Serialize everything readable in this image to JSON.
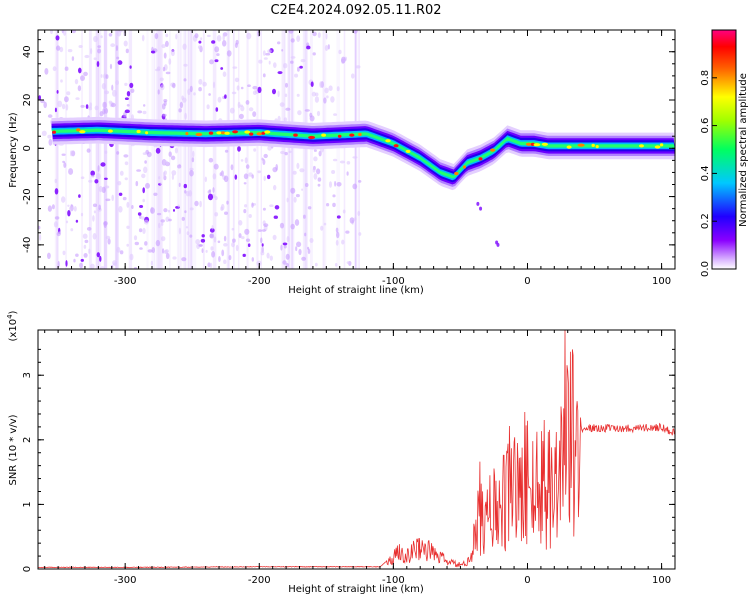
{
  "title": "C2E4.2024.092.05.11.R02",
  "chart_data": [
    {
      "type": "heatmap",
      "xlabel": "Height of straight line (km)",
      "ylabel": "Frequency (Hz)",
      "xlim": [
        -365,
        110
      ],
      "ylim": [
        -50,
        49
      ],
      "xticks": [
        "-300",
        "-200",
        "-100",
        "0",
        "100"
      ],
      "xtick_values": [
        -300,
        -200,
        -100,
        0,
        100
      ],
      "yticks": [
        "-40",
        "-20",
        "0",
        "20",
        "40"
      ],
      "ytick_values": [
        -40,
        -20,
        0,
        20,
        40
      ],
      "colorbar": {
        "label": "Normalized spectral amplitude",
        "range": [
          0,
          1
        ],
        "ticks": [
          "0.0",
          "0.2",
          "0.4",
          "0.6",
          "0.8"
        ],
        "tick_values": [
          0.0,
          0.2,
          0.4,
          0.6,
          0.8
        ]
      },
      "ridge": {
        "x": [
          -355,
          -320,
          -280,
          -240,
          -200,
          -160,
          -120,
          -100,
          -80,
          -65,
          -55,
          -45,
          -35,
          -25,
          -15,
          -5,
          5,
          15,
          25,
          60,
          110
        ],
        "y": [
          7,
          7.5,
          6.5,
          6,
          6.5,
          5,
          6,
          2,
          -4,
          -10,
          -12,
          -6,
          -4,
          -1,
          4,
          2,
          2,
          1,
          1,
          1,
          1
        ]
      },
      "noise_region_x": [
        -365,
        -125
      ]
    },
    {
      "type": "line",
      "xlabel": "Height of straight line (km)",
      "ylabel": "SNR (10 * v/v)",
      "y_multiplier": "(x10",
      "y_multiplier_exp": "4",
      "y_multiplier_close": ")",
      "xlim": [
        -365,
        110
      ],
      "ylim": [
        0,
        3.7
      ],
      "xticks": [
        "-300",
        "-200",
        "-100",
        "0",
        "100"
      ],
      "xtick_values": [
        -300,
        -200,
        -100,
        0,
        100
      ],
      "yticks": [
        "0",
        "1",
        "2",
        "3"
      ],
      "ytick_values": [
        0,
        1,
        2,
        3
      ],
      "color": "#e83030",
      "x": [
        -365,
        -300,
        -200,
        -110,
        -100,
        -95,
        -90,
        -80,
        -70,
        -60,
        -55,
        -50,
        -45,
        -40,
        -35,
        -30,
        -25,
        -20,
        -15,
        -10,
        -5,
        0,
        5,
        10,
        15,
        20,
        25,
        28,
        32,
        35,
        40,
        60,
        80,
        100,
        110
      ],
      "y": [
        0.02,
        0.02,
        0.03,
        0.03,
        0.2,
        0.4,
        0.25,
        0.45,
        0.3,
        0.15,
        0.1,
        0.08,
        0.1,
        0.5,
        1.3,
        0.9,
        1.4,
        1.1,
        1.5,
        1.8,
        1.3,
        2.2,
        1.4,
        1.8,
        2.0,
        1.6,
        2.2,
        3.6,
        2.8,
        2.2,
        2.18,
        2.18,
        2.18,
        2.2,
        2.1
      ]
    }
  ]
}
